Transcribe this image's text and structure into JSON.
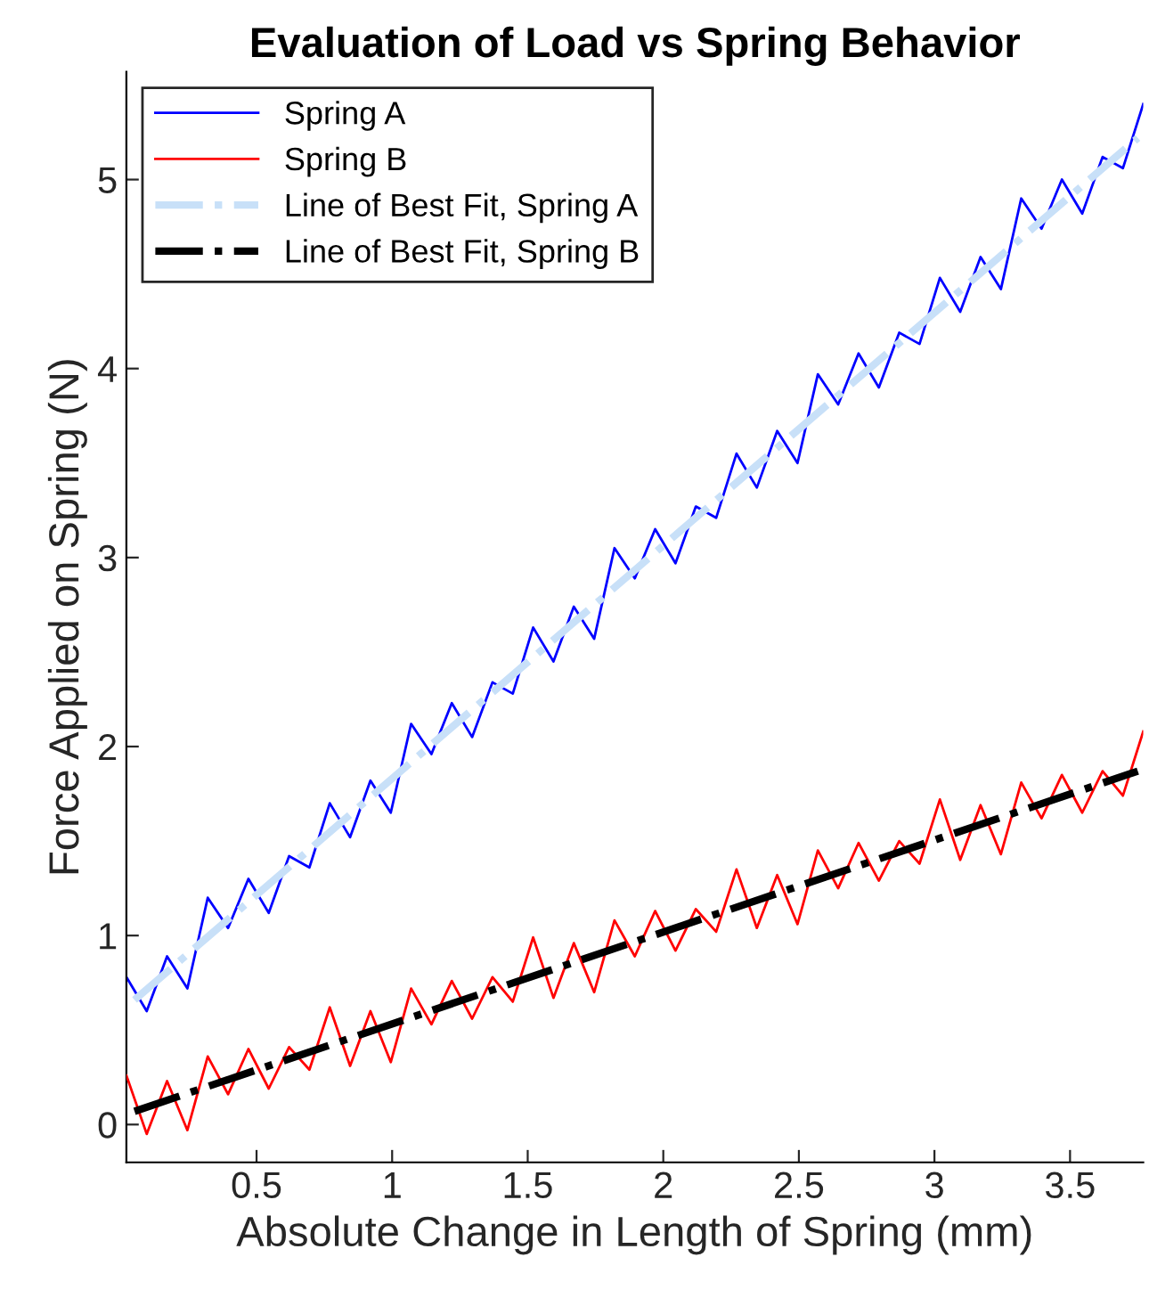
{
  "chart_data": {
    "type": "line",
    "title": "Evaluation of Load vs Spring Behavior",
    "xlabel": "Absolute Change in Length of Spring (mm)",
    "ylabel": "Force Applied on Spring (N)",
    "x": [
      0.02,
      0.095,
      0.17,
      0.245,
      0.32,
      0.395,
      0.47,
      0.545,
      0.62,
      0.695,
      0.77,
      0.845,
      0.92,
      0.995,
      1.07,
      1.145,
      1.22,
      1.295,
      1.37,
      1.445,
      1.52,
      1.595,
      1.67,
      1.745,
      1.82,
      1.895,
      1.97,
      2.045,
      2.12,
      2.195,
      2.27,
      2.345,
      2.42,
      2.495,
      2.57,
      2.645,
      2.72,
      2.795,
      2.87,
      2.945,
      3.02,
      3.095,
      3.17,
      3.245,
      3.32,
      3.395,
      3.47,
      3.545,
      3.62,
      3.695,
      3.77
    ],
    "series": [
      {
        "name": "Spring A",
        "color": "#0000ff",
        "line_style": "solid",
        "values": [
          0.78,
          0.6,
          0.89,
          0.72,
          1.2,
          1.04,
          1.3,
          1.12,
          1.42,
          1.36,
          1.7,
          1.52,
          1.82,
          1.65,
          2.12,
          1.96,
          2.23,
          2.05,
          2.34,
          2.28,
          2.63,
          2.45,
          2.74,
          2.57,
          3.05,
          2.89,
          3.15,
          2.97,
          3.27,
          3.21,
          3.55,
          3.37,
          3.67,
          3.5,
          3.97,
          3.81,
          4.08,
          3.9,
          4.19,
          4.13,
          4.48,
          4.3,
          4.59,
          4.42,
          4.9,
          4.74,
          5.0,
          4.82,
          5.12,
          5.06,
          5.4
        ]
      },
      {
        "name": "Spring B",
        "color": "#ff0000",
        "line_style": "solid",
        "values": [
          0.26,
          -0.05,
          0.23,
          -0.03,
          0.36,
          0.16,
          0.4,
          0.19,
          0.41,
          0.29,
          0.62,
          0.31,
          0.6,
          0.33,
          0.72,
          0.53,
          0.76,
          0.56,
          0.78,
          0.65,
          0.99,
          0.67,
          0.96,
          0.7,
          1.08,
          0.89,
          1.13,
          0.92,
          1.14,
          1.02,
          1.35,
          1.04,
          1.32,
          1.06,
          1.45,
          1.25,
          1.49,
          1.29,
          1.5,
          1.38,
          1.72,
          1.4,
          1.69,
          1.43,
          1.81,
          1.62,
          1.85,
          1.65,
          1.87,
          1.74,
          2.08
        ]
      },
      {
        "name": "Line of Best Fit, Spring A",
        "color": "#c8e0f8",
        "line_style": "dashdot",
        "x": [
          0.05,
          1.9,
          3.75
        ],
        "values": [
          0.66,
          2.94,
          5.22
        ]
      },
      {
        "name": "Line of Best Fit, Spring B",
        "color": "#000000",
        "line_style": "dashdot",
        "x": [
          0.05,
          1.9,
          3.75
        ],
        "values": [
          0.07,
          0.97,
          1.87
        ]
      }
    ],
    "xlim": [
      0.02,
      3.77
    ],
    "ylim": [
      -0.2,
      5.57
    ],
    "xticks": [
      0.5,
      1,
      1.5,
      2,
      2.5,
      3,
      3.5
    ],
    "yticks": [
      0,
      1,
      2,
      3,
      4,
      5
    ],
    "grid": false,
    "legend": "top left"
  }
}
